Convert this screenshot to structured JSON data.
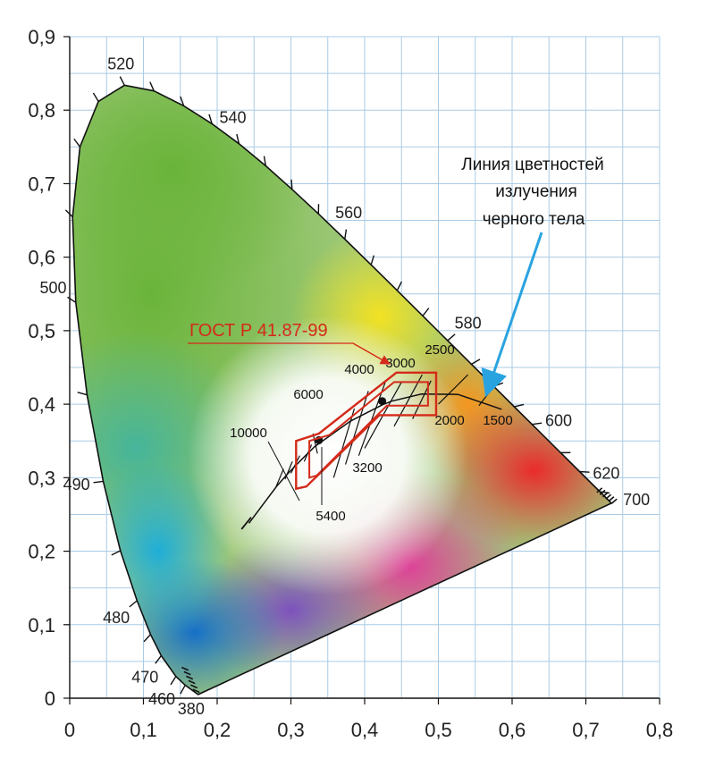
{
  "chart_data": {
    "type": "chromaticity-diagram",
    "xlim": [
      0,
      0.8
    ],
    "ylim": [
      0,
      0.9
    ],
    "grid": true,
    "x_ticks": [
      "0",
      "0,1",
      "0,2",
      "0,3",
      "0,4",
      "0,5",
      "0,6",
      "0,7",
      "0,8"
    ],
    "y_ticks": [
      "0",
      "0,1",
      "0,2",
      "0,3",
      "0,4",
      "0,5",
      "0,6",
      "0,7",
      "0,8",
      "0,9"
    ],
    "spectral_locus": [
      {
        "nm": 380,
        "x": 0.1741,
        "y": 0.005,
        "label": "380"
      },
      {
        "nm": 450,
        "x": 0.1566,
        "y": 0.0177
      },
      {
        "nm": 460,
        "x": 0.144,
        "y": 0.0297,
        "label": "460"
      },
      {
        "nm": 470,
        "x": 0.1241,
        "y": 0.0578,
        "label": "470"
      },
      {
        "nm": 475,
        "x": 0.1096,
        "y": 0.0868
      },
      {
        "nm": 480,
        "x": 0.0913,
        "y": 0.1327,
        "label": "480"
      },
      {
        "nm": 485,
        "x": 0.0687,
        "y": 0.2007
      },
      {
        "nm": 490,
        "x": 0.0454,
        "y": 0.295,
        "label": "490"
      },
      {
        "nm": 495,
        "x": 0.0235,
        "y": 0.4127
      },
      {
        "nm": 500,
        "x": 0.0082,
        "y": 0.5384,
        "label": "500"
      },
      {
        "nm": 505,
        "x": 0.0039,
        "y": 0.6548
      },
      {
        "nm": 510,
        "x": 0.0139,
        "y": 0.7502
      },
      {
        "nm": 515,
        "x": 0.0389,
        "y": 0.812
      },
      {
        "nm": 520,
        "x": 0.0743,
        "y": 0.8338,
        "label": "520"
      },
      {
        "nm": 525,
        "x": 0.1142,
        "y": 0.8262
      },
      {
        "nm": 530,
        "x": 0.1547,
        "y": 0.8059
      },
      {
        "nm": 535,
        "x": 0.1929,
        "y": 0.7816
      },
      {
        "nm": 540,
        "x": 0.2296,
        "y": 0.7543,
        "label": "540"
      },
      {
        "nm": 545,
        "x": 0.2658,
        "y": 0.7243
      },
      {
        "nm": 550,
        "x": 0.3016,
        "y": 0.6923
      },
      {
        "nm": 555,
        "x": 0.3373,
        "y": 0.6589
      },
      {
        "nm": 560,
        "x": 0.3731,
        "y": 0.6245,
        "label": "560"
      },
      {
        "nm": 565,
        "x": 0.4087,
        "y": 0.5896
      },
      {
        "nm": 570,
        "x": 0.4441,
        "y": 0.5547
      },
      {
        "nm": 575,
        "x": 0.4788,
        "y": 0.5202
      },
      {
        "nm": 580,
        "x": 0.5125,
        "y": 0.4866,
        "label": "580"
      },
      {
        "nm": 585,
        "x": 0.5448,
        "y": 0.4544
      },
      {
        "nm": 590,
        "x": 0.5752,
        "y": 0.4242
      },
      {
        "nm": 595,
        "x": 0.6029,
        "y": 0.3965
      },
      {
        "nm": 600,
        "x": 0.627,
        "y": 0.3725,
        "label": "600"
      },
      {
        "nm": 610,
        "x": 0.6658,
        "y": 0.334
      },
      {
        "nm": 620,
        "x": 0.6915,
        "y": 0.3083,
        "label": "620"
      },
      {
        "nm": 640,
        "x": 0.719,
        "y": 0.2809
      },
      {
        "nm": 660,
        "x": 0.73,
        "y": 0.27
      },
      {
        "nm": 700,
        "x": 0.7347,
        "y": 0.2653,
        "label": "700"
      }
    ],
    "blackbody_locus": [
      {
        "T": 10000,
        "x": 0.2807,
        "y": 0.2884
      },
      {
        "T": 8000,
        "x": 0.2952,
        "y": 0.3048
      },
      {
        "T": 6500,
        "x": 0.3135,
        "y": 0.3237
      },
      {
        "T": 5400,
        "x": 0.3324,
        "y": 0.3424
      },
      {
        "T": 4000,
        "x": 0.3805,
        "y": 0.3768
      },
      {
        "T": 3200,
        "x": 0.4238,
        "y": 0.399
      },
      {
        "T": 3000,
        "x": 0.4369,
        "y": 0.4041
      },
      {
        "T": 2500,
        "x": 0.477,
        "y": 0.4137
      },
      {
        "T": 2000,
        "x": 0.5267,
        "y": 0.4133
      },
      {
        "T": 1500,
        "x": 0.5857,
        "y": 0.3931
      }
    ],
    "cct_points": [
      {
        "label": "3200",
        "x": 0.4238,
        "y": 0.4041
      },
      {
        "label": "5400",
        "x": 0.338,
        "y": 0.351
      }
    ],
    "cct_labels": [
      "10000",
      "6000",
      "5400",
      "4000",
      "3200",
      "3000",
      "2500",
      "2000",
      "1500"
    ],
    "gost_region": [
      [
        0.307,
        0.285
      ],
      [
        0.307,
        0.35
      ],
      [
        0.338,
        0.36
      ],
      [
        0.443,
        0.443
      ],
      [
        0.497,
        0.443
      ],
      [
        0.497,
        0.385
      ],
      [
        0.42,
        0.385
      ],
      [
        0.321,
        0.288
      ]
    ],
    "annotations": {
      "gost": "ГОСТ Р 41.87-99",
      "locus_line_1": "Линия цветностей",
      "locus_line_2": "излучения",
      "locus_line_3": "черного тела"
    }
  }
}
